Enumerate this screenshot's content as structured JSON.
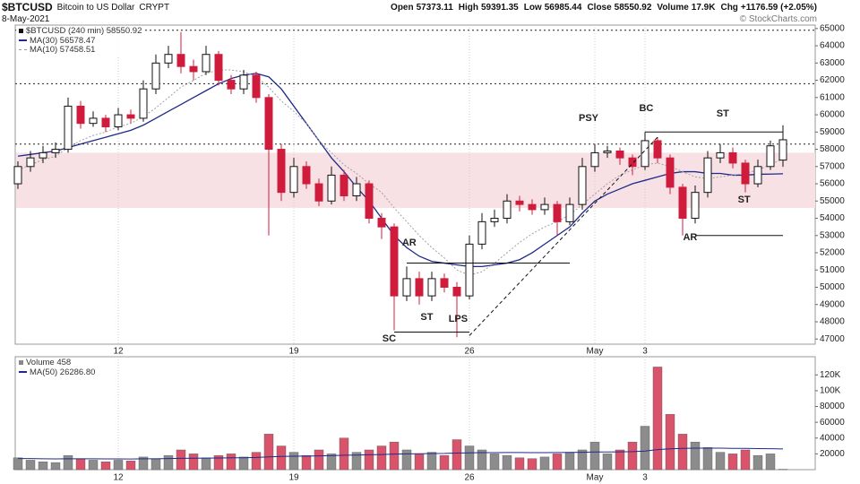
{
  "chart_data": [
    {
      "type": "candlestick",
      "title": "$BTCUSD",
      "subtitle": "Bitcoin to US Dollar",
      "exchange": "CRYPT",
      "date": "8-May-2021",
      "watermark": "© StockCharts.com",
      "header_stats": [
        {
          "label": "Open",
          "value": 57373.11
        },
        {
          "label": "High",
          "value": 59391.35
        },
        {
          "label": "Low",
          "value": 56985.44
        },
        {
          "label": "Close",
          "value": 58550.92
        },
        {
          "label": "Volume",
          "value": "17.9K"
        },
        {
          "label": "Chg",
          "value": "+1176.59 (+2.05%)"
        }
      ],
      "legend_label": "$BTCUSD (240 min)",
      "categories": [
        null,
        null,
        null,
        null,
        null,
        null,
        null,
        null,
        "12",
        null,
        null,
        null,
        null,
        null,
        null,
        null,
        null,
        null,
        null,
        null,
        null,
        null,
        "19",
        null,
        null,
        null,
        null,
        null,
        null,
        null,
        null,
        null,
        null,
        null,
        null,
        null,
        "26",
        null,
        null,
        null,
        null,
        null,
        null,
        null,
        null,
        null,
        "May",
        null,
        null,
        null,
        "3",
        null,
        null,
        null,
        null,
        null,
        null,
        null,
        null,
        null,
        null,
        null
      ],
      "open": [
        56000,
        57000,
        57500,
        57800,
        58000,
        60500,
        59500,
        59800,
        59300,
        60000,
        59800,
        61500,
        63000,
        63500,
        62800,
        62500,
        63500,
        62000,
        61500,
        62300,
        61000,
        58000,
        55500,
        57000,
        56000,
        55000,
        56500,
        55300,
        56000,
        54000,
        53500,
        49500,
        50500,
        49500,
        50500,
        50000,
        49500,
        52500,
        53800,
        54000,
        55000,
        54800,
        54500,
        54800,
        53800,
        54800,
        57000,
        57800,
        57900,
        57500,
        57000,
        58500,
        57500,
        55800,
        54000,
        55500,
        57500,
        57800,
        57200,
        56000,
        57000,
        57373.11
      ],
      "high": [
        57300,
        57900,
        58200,
        58400,
        61000,
        60800,
        60200,
        60000,
        60400,
        60300,
        62000,
        63500,
        64000,
        64800,
        63200,
        64000,
        63700,
        62300,
        62600,
        62500,
        61200,
        58300,
        57500,
        57300,
        56300,
        57000,
        56800,
        56400,
        56200,
        54300,
        53700,
        51200,
        50900,
        50900,
        50800,
        50300,
        53000,
        54300,
        54500,
        55400,
        55300,
        55100,
        55200,
        55000,
        55200,
        57500,
        58300,
        58200,
        58100,
        57700,
        59000,
        58700,
        57700,
        56000,
        55900,
        57900,
        58300,
        58100,
        57400,
        57400,
        58500,
        59391.35
      ],
      "low": [
        55700,
        56700,
        57200,
        57500,
        57800,
        59200,
        59300,
        59000,
        59100,
        59500,
        59600,
        61200,
        62700,
        62400,
        62000,
        62300,
        61700,
        61200,
        61200,
        60700,
        53000,
        55000,
        55200,
        55700,
        54700,
        54800,
        55000,
        55000,
        53700,
        52800,
        47500,
        49200,
        49000,
        49200,
        49700,
        47100,
        49300,
        52200,
        53500,
        53700,
        54400,
        54200,
        54200,
        53000,
        53600,
        54500,
        56700,
        57500,
        57100,
        56500,
        56800,
        57200,
        55400,
        53000,
        53700,
        55200,
        57200,
        56900,
        55500,
        55800,
        56800,
        56985.44
      ],
      "close": [
        57000,
        57500,
        57800,
        58000,
        60500,
        59500,
        59800,
        59300,
        60000,
        59800,
        61500,
        63000,
        63500,
        62800,
        62500,
        63500,
        62000,
        61500,
        62300,
        61000,
        58000,
        55500,
        57000,
        56000,
        55000,
        56500,
        55300,
        56000,
        54000,
        53500,
        49500,
        50500,
        49500,
        50500,
        50000,
        49500,
        52500,
        53800,
        54000,
        55000,
        54800,
        54500,
        54800,
        53800,
        54800,
        57000,
        57800,
        57900,
        57500,
        57000,
        58500,
        57500,
        55800,
        54000,
        55500,
        57500,
        57800,
        57200,
        56000,
        57000,
        58200,
        58550.92
      ],
      "up_color": "#111111",
      "down_color": "#d01c3c",
      "series": [
        {
          "name": "MA(30)",
          "color": "#1f2a8a",
          "dashed": false,
          "values": [
            57600,
            57700,
            57800,
            57900,
            58100,
            58300,
            58500,
            58700,
            58900,
            59100,
            59400,
            59800,
            60200,
            60600,
            61000,
            61400,
            61800,
            62100,
            62300,
            62400,
            62200,
            61500,
            60500,
            59500,
            58500,
            57500,
            56700,
            55800,
            55000,
            54000,
            53000,
            52300,
            51800,
            51500,
            51400,
            51300,
            51200,
            51200,
            51300,
            51400,
            51600,
            52000,
            52500,
            53000,
            53500,
            54300,
            55000,
            55400,
            55700,
            56000,
            56200,
            56400,
            56600,
            56700,
            56700,
            56600,
            56600,
            56500,
            56500,
            56550,
            56560,
            56578.47
          ]
        },
        {
          "name": "MA(10)",
          "color": "#a0a0a0",
          "dashed": true,
          "values": [
            56800,
            57100,
            57400,
            57600,
            58100,
            58500,
            58800,
            59000,
            59300,
            59500,
            59900,
            60400,
            61000,
            61600,
            62000,
            62400,
            62600,
            62600,
            62500,
            62200,
            61600,
            60800,
            60200,
            59500,
            58500,
            57800,
            57100,
            56600,
            56000,
            55500,
            54600,
            53800,
            53000,
            52300,
            51700,
            51000,
            50700,
            50900,
            51400,
            52000,
            52600,
            53100,
            53500,
            53800,
            54200,
            54800,
            55400,
            56000,
            56500,
            56800,
            57100,
            57200,
            57000,
            56700,
            56400,
            56300,
            56400,
            56500,
            56600,
            56800,
            57100,
            57458.51
          ]
        }
      ],
      "ylim": [
        46700,
        65200
      ],
      "yticks": [
        47000,
        48000,
        49000,
        50000,
        51000,
        52000,
        53000,
        54000,
        55000,
        56000,
        57000,
        58000,
        59000,
        60000,
        61000,
        62000,
        63000,
        64000,
        65000
      ],
      "shaded_zone": [
        54600,
        57800
      ],
      "zone_color": "#f8e1e4",
      "reference_lines": [
        58300,
        61800,
        64900
      ],
      "trendlines": [
        {
          "from": [
            30,
            47400
          ],
          "to": [
            36,
            47400
          ],
          "dashed": false
        },
        {
          "from": [
            31,
            51400
          ],
          "to": [
            44,
            51400
          ],
          "dashed": false
        },
        {
          "from": [
            50,
            59000
          ],
          "to": [
            61,
            59000
          ],
          "dashed": false
        },
        {
          "from": [
            54,
            53000
          ],
          "to": [
            61,
            53000
          ],
          "dashed": false
        },
        {
          "from": [
            36,
            47200
          ],
          "to": [
            51,
            58700
          ],
          "dashed": true
        }
      ],
      "annotations": [
        {
          "text": "SC",
          "at": [
            29.6,
            47000
          ]
        },
        {
          "text": "AR",
          "at": [
            31.2,
            52560
          ]
        },
        {
          "text": "ST",
          "at": [
            32.6,
            48250
          ]
        },
        {
          "text": "LPS",
          "at": [
            35.1,
            48150
          ]
        },
        {
          "text": "PSY",
          "at": [
            45.5,
            59800
          ]
        },
        {
          "text": "BC",
          "at": [
            50.1,
            60370
          ]
        },
        {
          "text": "ST",
          "at": [
            56.2,
            60060
          ]
        },
        {
          "text": "ST",
          "at": [
            57.9,
            55060
          ]
        },
        {
          "text": "AR",
          "at": [
            53.6,
            52880
          ]
        }
      ]
    },
    {
      "type": "bar",
      "title": "Volume",
      "values": [
        15000,
        12000,
        10000,
        9000,
        18000,
        14000,
        12000,
        10000,
        12000,
        11000,
        16000,
        14000,
        18000,
        25000,
        20000,
        15000,
        18000,
        20000,
        16000,
        22000,
        45000,
        30000,
        22000,
        18000,
        25000,
        20000,
        40000,
        22000,
        25000,
        30000,
        35000,
        25000,
        20000,
        22000,
        18000,
        38000,
        30000,
        25000,
        20000,
        18000,
        15000,
        14000,
        16000,
        20000,
        22000,
        25000,
        35000,
        20000,
        25000,
        35000,
        55000,
        130000,
        70000,
        45000,
        35000,
        28000,
        22000,
        20000,
        25000,
        18000,
        20000,
        458
      ],
      "up_color": "#8c8c8c",
      "down_color": "#d9536b",
      "series": [
        {
          "name": "MA(50)",
          "color": "#1f2a8a",
          "last_label": "26286.80",
          "values": [
            14000,
            14000,
            13800,
            13600,
            13800,
            13800,
            13700,
            13600,
            13600,
            13500,
            13700,
            13800,
            14000,
            14300,
            14500,
            14600,
            14800,
            15000,
            15100,
            15400,
            16200,
            16700,
            17000,
            17200,
            17500,
            17700,
            18300,
            18500,
            18800,
            19200,
            19700,
            20000,
            20200,
            20400,
            20500,
            21000,
            21300,
            21500,
            21600,
            21700,
            21700,
            21600,
            21600,
            21700,
            21800,
            22000,
            22400,
            22400,
            22500,
            22800,
            23500,
            25400,
            26400,
            27000,
            27300,
            27300,
            27200,
            27000,
            26900,
            26700,
            26500,
            26286.8
          ]
        }
      ],
      "ylim": [
        0,
        143000
      ],
      "yticks": [
        20000,
        40000,
        60000,
        80000,
        {
          "value": 100000,
          "label": "100K"
        },
        {
          "value": 120000,
          "label": "120K"
        }
      ]
    }
  ]
}
